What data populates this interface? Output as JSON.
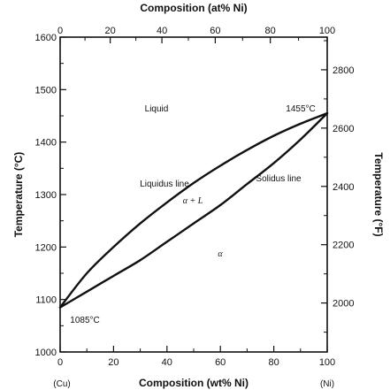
{
  "chart_data": {
    "type": "line",
    "xlabel_bottom": "Composition (wt% Ni)",
    "xlabel_top": "Composition (at% Ni)",
    "ylabel_left": "Temperature (°C)",
    "ylabel_right": "Temperature (°F)",
    "x_ticks_bottom": [
      0,
      20,
      40,
      60,
      80,
      100
    ],
    "x_ticks_top": [
      0,
      20,
      40,
      60,
      80,
      100
    ],
    "y_ticks_left": [
      1000,
      1100,
      1200,
      1300,
      1400,
      1500,
      1600
    ],
    "y_ticks_right": [
      2000,
      2200,
      2400,
      2600,
      2800
    ],
    "xlim": [
      0,
      100
    ],
    "ylim": [
      1000,
      1600
    ],
    "end_labels": {
      "left": "(Cu)",
      "right": "(Ni)"
    },
    "series": [
      {
        "name": "Liquidus line",
        "x": [
          0,
          10,
          20,
          30,
          40,
          50,
          60,
          70,
          80,
          90,
          100
        ],
        "y": [
          1085,
          1150,
          1200,
          1245,
          1285,
          1322,
          1355,
          1385,
          1412,
          1435,
          1455
        ]
      },
      {
        "name": "Solidus line",
        "x": [
          0,
          10,
          20,
          30,
          40,
          50,
          60,
          70,
          80,
          90,
          100
        ],
        "y": [
          1085,
          1115,
          1145,
          1175,
          1210,
          1245,
          1280,
          1320,
          1360,
          1405,
          1455
        ]
      }
    ],
    "annotations": {
      "liquid": "Liquid",
      "alpha_l": "α + L",
      "alpha": "α",
      "ni_melt": "1455°C",
      "cu_melt": "1085°C"
    }
  }
}
